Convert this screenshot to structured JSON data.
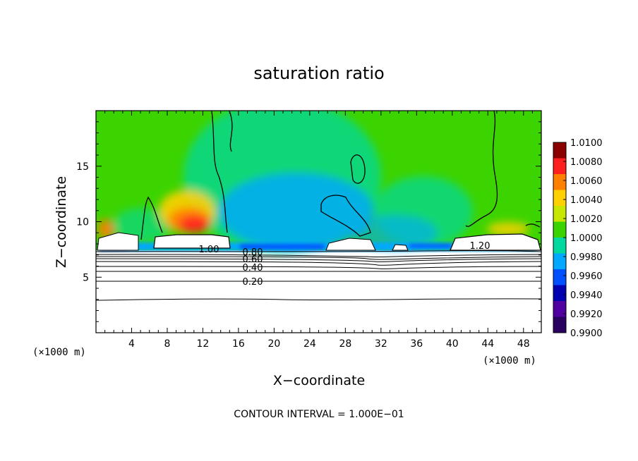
{
  "chart_data": {
    "type": "heatmap",
    "title": "saturation ratio",
    "xlabel": "X−coordinate",
    "ylabel": "Z−coordinate",
    "x_unit_left": "(×1000 m)",
    "x_unit_right": "(×1000 m)",
    "xlim": [
      0,
      50
    ],
    "ylim": [
      0,
      20
    ],
    "x_ticks": [
      4,
      8,
      12,
      16,
      20,
      24,
      28,
      32,
      36,
      40,
      44,
      48
    ],
    "y_ticks": [
      5,
      10,
      15
    ],
    "colorbar": {
      "levels": [
        "1.0100",
        "1.0080",
        "1.0060",
        "1.0040",
        "1.0020",
        "1.0000",
        "0.9980",
        "0.9960",
        "0.9940",
        "0.9920",
        "0.9900"
      ],
      "colors": [
        "#8b0000",
        "#ff2020",
        "#ff7f00",
        "#ffd000",
        "#c8e600",
        "#3cd400",
        "#00d8a0",
        "#00a8ff",
        "#0050ff",
        "#0000b0",
        "#5000a0",
        "#2a0060"
      ]
    },
    "contour_labels": [
      "1.00",
      "0.80",
      "0.60",
      "0.40",
      "0.20",
      "1.20"
    ],
    "contour_levels_z": [
      3.1,
      4.6,
      5.5,
      6.0,
      6.4,
      6.8,
      7.1,
      7.4
    ],
    "cloud_regions_x": [
      [
        1,
        5
      ],
      [
        7,
        15
      ],
      [
        26,
        32
      ],
      [
        33,
        35
      ],
      [
        39,
        50
      ]
    ],
    "cloud_base_z": 7.7,
    "cloud_top_z": 9.0,
    "background_color": "#3cd400",
    "note": "CONTOUR INTERVAL = 1.000E−01"
  }
}
